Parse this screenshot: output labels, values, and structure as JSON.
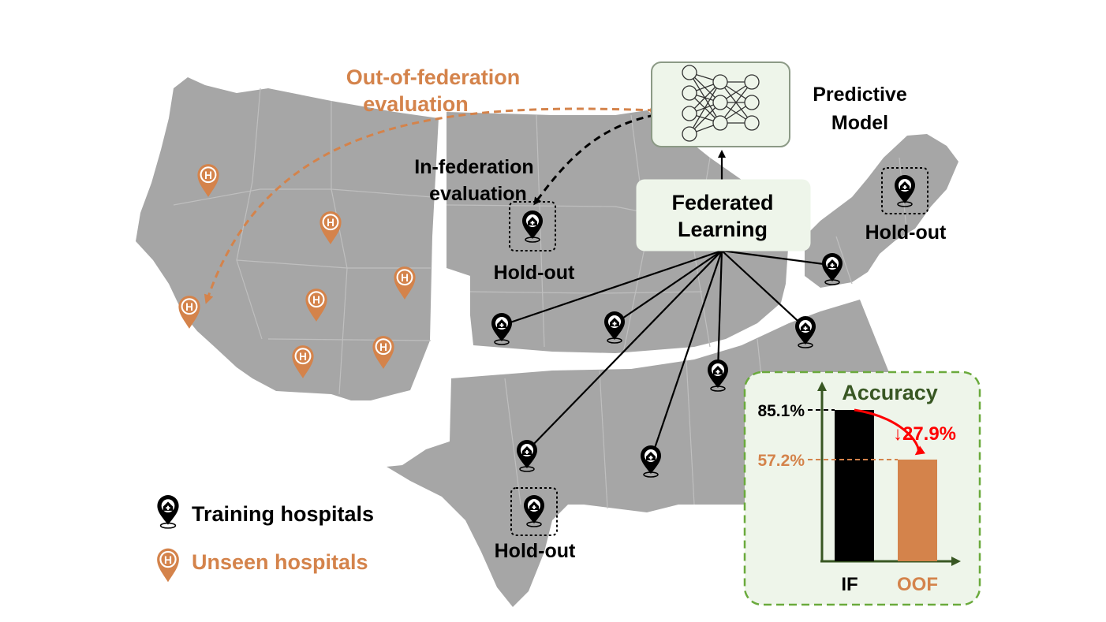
{
  "labels": {
    "oof_line1": "Out-of-federation",
    "oof_line2": "evaluation",
    "if_line1": "In-federation",
    "if_line2": "evaluation",
    "model_line1": "Predictive",
    "model_line2": "Model",
    "fl_line1": "Federated",
    "fl_line2": "Learning",
    "holdout_midwest": "Hold-out",
    "holdout_northeast": "Hold-out",
    "holdout_texas": "Hold-out"
  },
  "legend": {
    "training": "Training hospitals",
    "unseen": "Unseen hospitals"
  },
  "colors": {
    "map": "#a6a6a6",
    "orange": "#d4834b",
    "black": "#000000",
    "green_dark": "#385723",
    "green_box": "#6aaa3c",
    "green_fill": "#eef5ea",
    "red": "#ff0000"
  },
  "chart_data": {
    "type": "bar",
    "title": "Accuracy",
    "categories": [
      "IF",
      "OOF"
    ],
    "values": [
      85.1,
      57.2
    ],
    "value_labels": [
      "85.1%",
      "57.2%"
    ],
    "drop_label": "↓27.9%",
    "bar_colors": [
      "#000000",
      "#d4834b"
    ],
    "ylim": [
      0,
      100
    ]
  }
}
